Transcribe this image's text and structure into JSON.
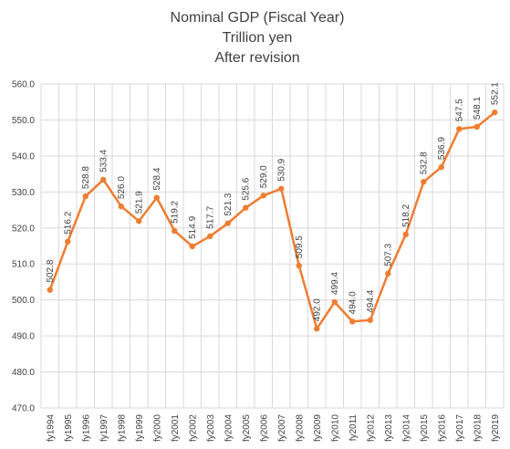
{
  "chart_data": {
    "type": "line",
    "title": [
      "Nominal GDP (Fiscal Year)",
      "Trillion yen",
      "After revision"
    ],
    "xlabel": "",
    "ylabel": "",
    "ylim": [
      470.0,
      560.0
    ],
    "ytick_step": 10,
    "ytick_labels": [
      "470.0",
      "480.0",
      "490.0",
      "500.0",
      "510.0",
      "520.0",
      "530.0",
      "540.0",
      "550.0",
      "560.0"
    ],
    "grid": true,
    "legend": "none",
    "colors": {
      "line": "#ed7d31",
      "grid": "#d9d9d9",
      "text": "#404040"
    },
    "categories": [
      "fy1994",
      "fy1995",
      "fy1996",
      "fy1997",
      "fy1998",
      "fy1999",
      "fy2000",
      "fy2001",
      "fy2002",
      "fy2003",
      "fy2004",
      "fy2005",
      "fy2006",
      "fy2007",
      "fy2008",
      "fy2009",
      "fy2010",
      "fy2011",
      "fy2012",
      "fy2013",
      "fy2014",
      "fy2015",
      "fy2016",
      "fy2017",
      "fy2018",
      "fy2019"
    ],
    "series": [
      {
        "values": [
          502.8,
          516.2,
          528.8,
          533.4,
          526.0,
          521.9,
          528.4,
          519.2,
          514.9,
          517.7,
          521.3,
          525.6,
          529.0,
          530.9,
          509.5,
          492.0,
          499.4,
          494.0,
          494.4,
          507.3,
          518.2,
          532.8,
          536.9,
          547.5,
          548.1,
          552.1
        ],
        "labels": [
          "502.8",
          "516.2",
          "528.8",
          "533.4",
          "526.0",
          "521.9",
          "528.4",
          "519.2",
          "514.9",
          "517.7",
          "521.3",
          "525.6",
          "529.0",
          "530.9",
          "509.5",
          "492.0",
          "499.4",
          "494.0",
          "494.4",
          "507.3",
          "518.2",
          "532.8",
          "536.9",
          "547.5",
          "548.1",
          "552.1"
        ]
      }
    ]
  }
}
